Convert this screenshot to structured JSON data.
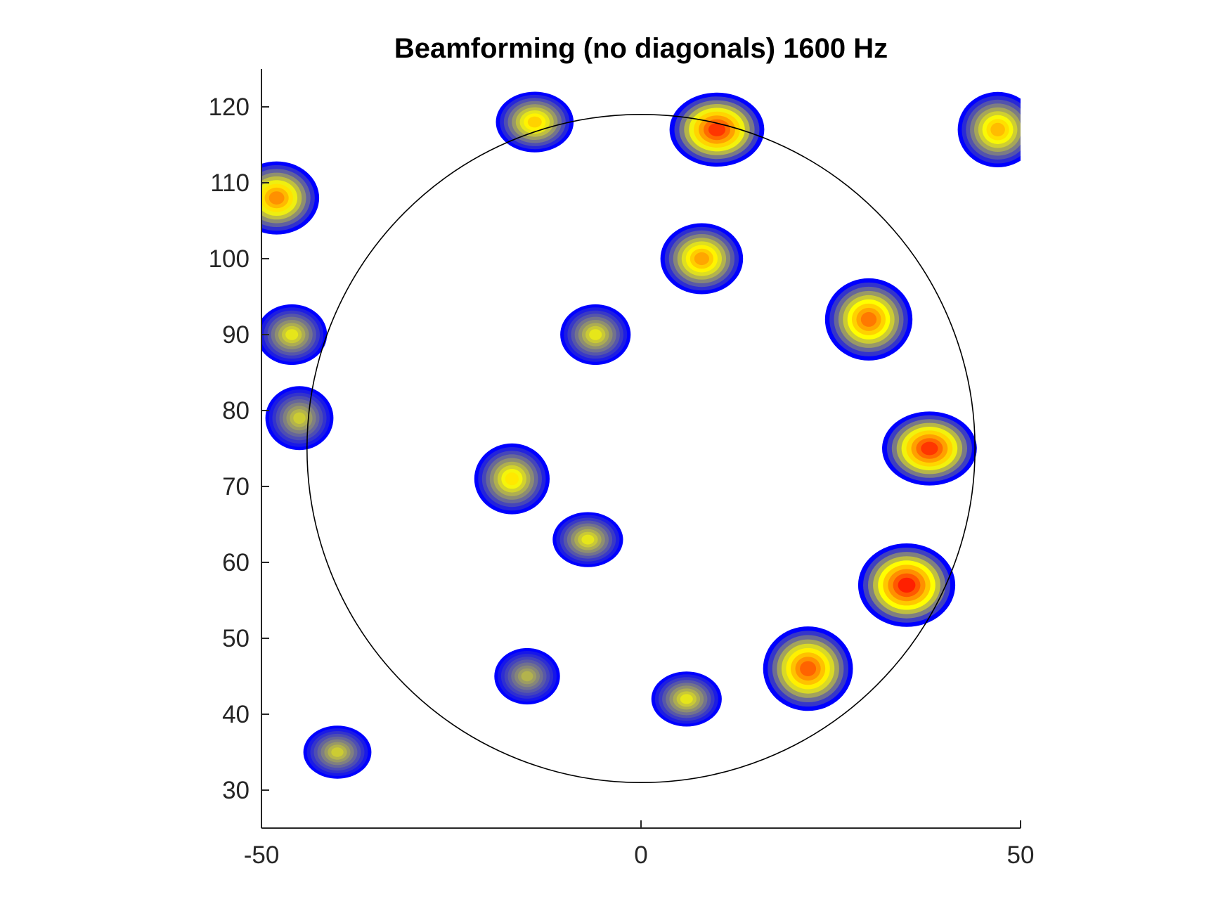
{
  "chart_data": {
    "type": "contour",
    "title": "Beamforming (no diagonals) 1600 Hz",
    "xlabel": "",
    "ylabel": "",
    "xlim": [
      -50,
      50
    ],
    "ylim": [
      25,
      125
    ],
    "xticks": [
      -50,
      0,
      50
    ],
    "yticks": [
      30,
      40,
      50,
      60,
      70,
      80,
      90,
      100,
      110,
      120
    ],
    "grid": false,
    "colormap": [
      "#0000ff",
      "#ffff00",
      "#ff2000"
    ],
    "reference_circle": {
      "cx": 0,
      "cy": 75,
      "r": 44
    },
    "hotspots": [
      {
        "label": "top-center-blob",
        "x": -14,
        "y": 118,
        "level": 0.6
      },
      {
        "label": "top-left-edge",
        "x": -48,
        "y": 108,
        "level": 0.75
      },
      {
        "label": "top-right-edge",
        "x": 47,
        "y": 117,
        "level": 0.65
      },
      {
        "label": "arc-top",
        "x": 10,
        "y": 117,
        "level": 0.95
      },
      {
        "label": "arc-upper",
        "x": 8,
        "y": 100,
        "level": 0.7
      },
      {
        "label": "arc-right-upper",
        "x": 30,
        "y": 92,
        "level": 0.8
      },
      {
        "label": "arc-right",
        "x": 38,
        "y": 75,
        "level": 0.95
      },
      {
        "label": "arc-right-lower",
        "x": 35,
        "y": 57,
        "level": 1.0
      },
      {
        "label": "arc-bottom-right",
        "x": 22,
        "y": 46,
        "level": 0.85
      },
      {
        "label": "arc-bottom",
        "x": 6,
        "y": 42,
        "level": 0.45
      },
      {
        "label": "center-upper-blob",
        "x": -6,
        "y": 90,
        "level": 0.45
      },
      {
        "label": "center-left-blob",
        "x": -17,
        "y": 71,
        "level": 0.55
      },
      {
        "label": "center-lower-blob",
        "x": -7,
        "y": 63,
        "level": 0.45
      },
      {
        "label": "left-mid-blob",
        "x": -46,
        "y": 90,
        "level": 0.45
      },
      {
        "label": "left-lower-blob",
        "x": -45,
        "y": 79,
        "level": 0.4
      },
      {
        "label": "bottom-left-blob",
        "x": -40,
        "y": 35,
        "level": 0.4
      },
      {
        "label": "lower-left-center-blob",
        "x": -15,
        "y": 45,
        "level": 0.35
      }
    ]
  }
}
